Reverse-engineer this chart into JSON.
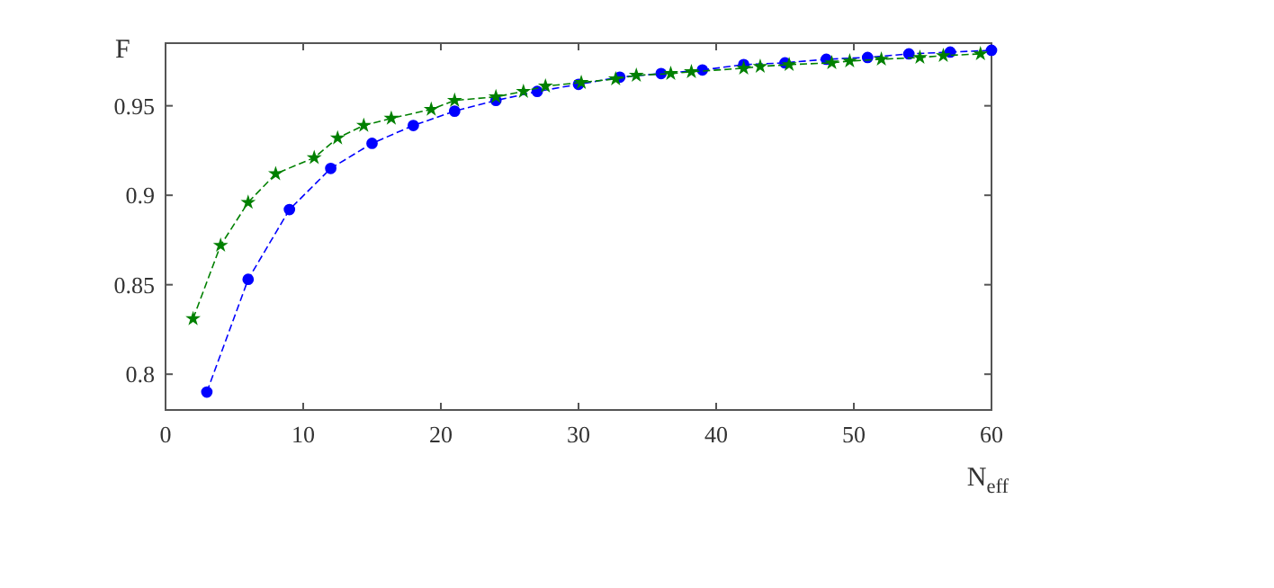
{
  "chart_data": {
    "type": "line",
    "xlabel": "N$_{eff}$",
    "ylabel": "F",
    "xlim": [
      0,
      60
    ],
    "xticks": [
      0,
      10,
      20,
      30,
      40,
      50,
      60
    ],
    "ylim": [
      0.78,
      0.985
    ],
    "yticks": [
      0.8,
      0.85,
      0.9,
      0.95
    ],
    "grid": false,
    "line_style": "dashed",
    "series": [
      {
        "color": "#0000ff",
        "marker": "circle",
        "x": [
          3,
          6,
          9,
          12,
          15,
          18,
          21,
          24,
          27,
          30,
          33,
          36,
          39,
          42,
          45,
          48,
          51,
          54,
          57,
          60
        ],
        "values": [
          0.79,
          0.853,
          0.892,
          0.915,
          0.929,
          0.939,
          0.947,
          0.953,
          0.958,
          0.962,
          0.966,
          0.968,
          0.97,
          0.973,
          0.974,
          0.976,
          0.977,
          0.979,
          0.98,
          0.981
        ]
      },
      {
        "color": "#008000",
        "marker": "star",
        "x": [
          2,
          4,
          6,
          8,
          10.8,
          12.5,
          14.4,
          16.4,
          19.3,
          21,
          24,
          26,
          27.6,
          30.2,
          32.7,
          34.2,
          36.7,
          38.2,
          42,
          43.2,
          45.3,
          48.4,
          49.7,
          52,
          54.8,
          56.5,
          59.2
        ],
        "values": [
          0.831,
          0.872,
          0.896,
          0.912,
          0.921,
          0.932,
          0.939,
          0.943,
          0.948,
          0.953,
          0.955,
          0.958,
          0.961,
          0.963,
          0.965,
          0.967,
          0.968,
          0.969,
          0.971,
          0.972,
          0.973,
          0.974,
          0.975,
          0.976,
          0.977,
          0.978,
          0.979
        ]
      }
    ]
  }
}
